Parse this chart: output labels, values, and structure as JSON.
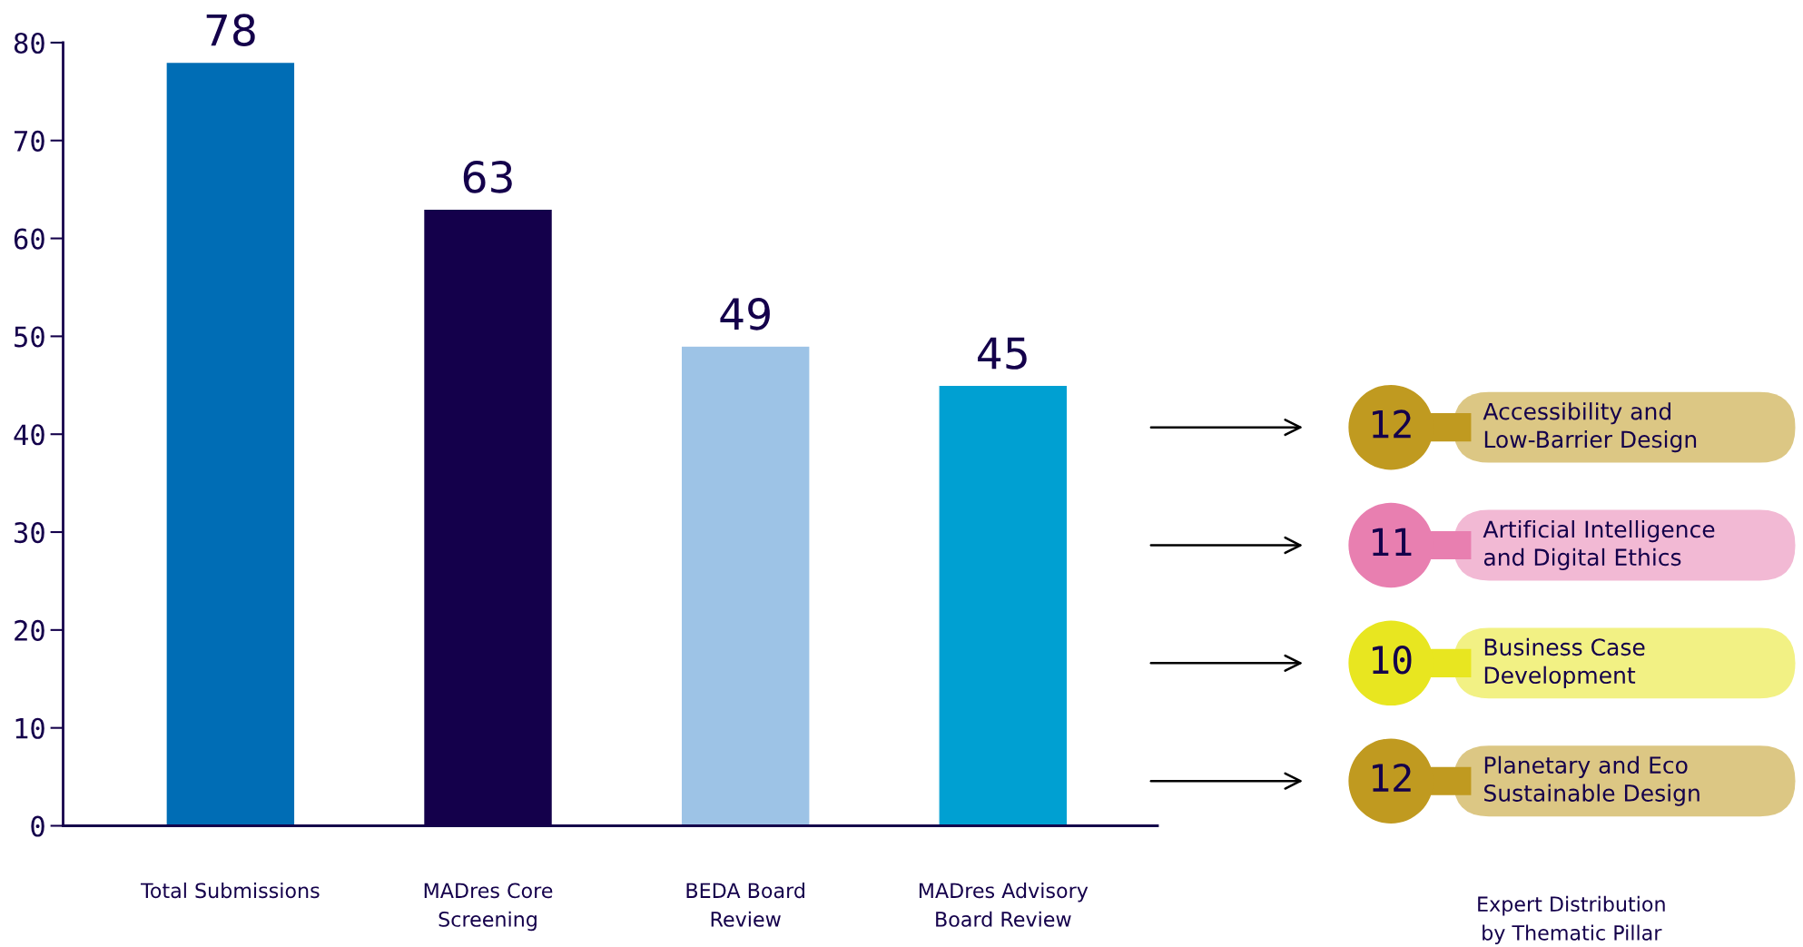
{
  "chart_data": [
    {
      "type": "bar",
      "categories": [
        "Total Submissions",
        "MADres Core\nScreening",
        "BEDA Board\nReview",
        "MADres Advisory\nBoard Review"
      ],
      "values": [
        78,
        63,
        49,
        45
      ],
      "colors": [
        "#006db5",
        "#14004b",
        "#9dc3e6",
        "#00a0d2"
      ],
      "ylim": [
        0,
        80
      ],
      "yticks": [
        0,
        10,
        20,
        30,
        40,
        50,
        60,
        70,
        80
      ],
      "data_labels": true,
      "grid": false
    },
    {
      "type": "other",
      "title": "Expert Distribution\nby Thematic Pillar",
      "categories": [
        "Accessibility and\nLow-Barrier Design",
        "Artificial Intelligence\nand Digital Ethics",
        "Business Case\nDevelopment",
        "Planetary and Eco\nSustainable Design"
      ],
      "values": [
        12,
        11,
        10,
        12
      ],
      "colors": [
        "#c09a20",
        "#e87fb0",
        "#e8e620",
        "#c09a20"
      ],
      "data_labels": true
    }
  ]
}
